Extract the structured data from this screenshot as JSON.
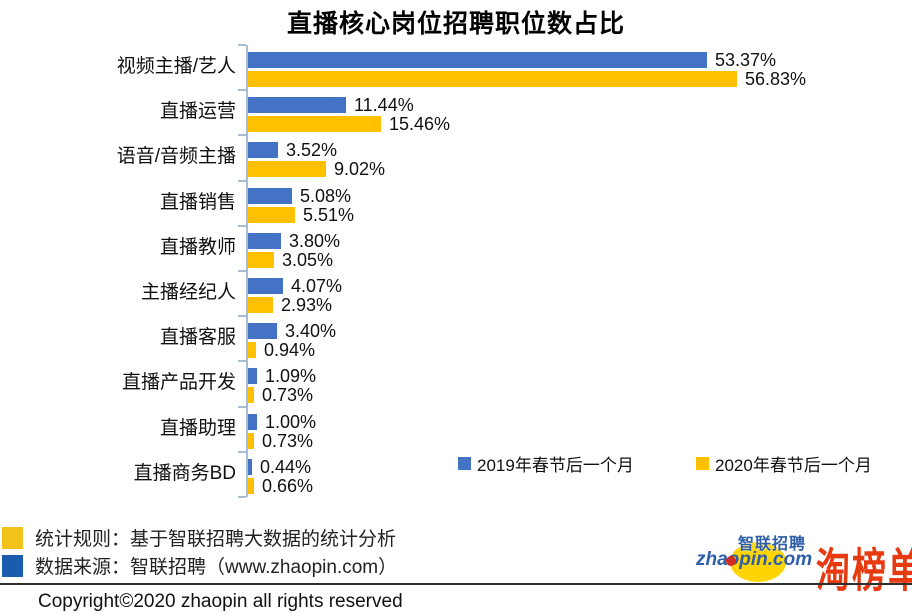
{
  "title": "直播核心岗位招聘职位数占比",
  "chart_data": {
    "type": "bar",
    "orientation": "horizontal",
    "title": "直播核心岗位招聘职位数占比",
    "categories": [
      "视频主播/艺人",
      "直播运营",
      "语音/音频主播",
      "直播销售",
      "直播教师",
      "主播经纪人",
      "直播客服",
      "直播产品开发",
      "直播助理",
      "直播商务BD"
    ],
    "series": [
      {
        "name": "2019年春节后一个月",
        "color": "#4472C4",
        "values": [
          53.37,
          11.44,
          3.52,
          5.08,
          3.8,
          4.07,
          3.4,
          1.09,
          1.0,
          0.44
        ],
        "labels": [
          "53.37%",
          "11.44%",
          "3.52%",
          "5.08%",
          "3.80%",
          "4.07%",
          "3.40%",
          "1.09%",
          "1.00%",
          "0.44%"
        ]
      },
      {
        "name": "2020年春节后一个月",
        "color": "#FFC000",
        "values": [
          56.83,
          15.46,
          9.02,
          5.51,
          3.05,
          2.93,
          0.94,
          0.73,
          0.73,
          0.66
        ],
        "labels": [
          "56.83%",
          "15.46%",
          "9.02%",
          "5.51%",
          "3.05%",
          "2.93%",
          "0.94%",
          "0.73%",
          "0.73%",
          "0.66%"
        ]
      }
    ],
    "value_suffix": "%",
    "xlim": [
      0,
      60
    ],
    "grid": false,
    "axis_color": "#A8BDD3",
    "legend_position": "bottom-right-inside"
  },
  "legend": {
    "items": [
      {
        "label": "2019年春节后一个月",
        "color": "#4472C4"
      },
      {
        "label": "2020年春节后一个月",
        "color": "#FFC000"
      }
    ]
  },
  "footnotes": [
    {
      "marker_color": "#F3C31B",
      "text": "统计规则：基于智联招聘大数据的统计分析"
    },
    {
      "marker_color": "#1A5CAD",
      "text": "数据来源：智联招聘（www.zhaopin.com）"
    }
  ],
  "logos": {
    "zhaopin_chinese": "智联招聘",
    "zhaopin_url": "zhaopin.com",
    "taobangdan": "淘榜单",
    "zhaopin_blue": "#2F5EA8",
    "zhaopin_sun_yellow": "#FFD400",
    "zhaopin_dot_red": "#D22B1F",
    "taobangdan_red": "#E73A10"
  },
  "divider_color": "#2F2F2F",
  "copyright": "Copyright©2020 zhaopin all rights reserved"
}
